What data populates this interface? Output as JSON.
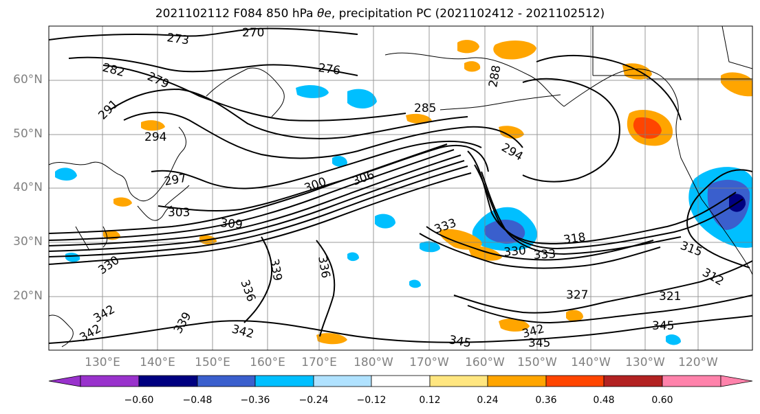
{
  "title_prefix": "2021102112 F084 850 hPa ",
  "title_symbol": "θe",
  "title_suffix": ", precipitation PC (2021102412 - 2021102512)",
  "lat_labels": [
    "60°N",
    "50°N",
    "40°N",
    "30°N",
    "20°N"
  ],
  "lon_labels": [
    "130°E",
    "140°E",
    "150°E",
    "160°E",
    "170°E",
    "180°W",
    "170°W",
    "160°W",
    "150°W",
    "140°W",
    "130°W",
    "120°W"
  ],
  "contour_labels": [
    "273",
    "270",
    "282",
    "279",
    "276",
    "291",
    "285",
    "294",
    "288",
    "297",
    "294",
    "300",
    "306",
    "303",
    "309",
    "333",
    "318",
    "330",
    "333",
    "339",
    "336",
    "336",
    "330",
    "315",
    "312",
    "342",
    "321",
    "327",
    "345",
    "342",
    "339",
    "342",
    "345",
    "342",
    "345"
  ],
  "colorbar": {
    "ticks": [
      "−0.60",
      "−0.48",
      "−0.36",
      "−0.24",
      "−0.12",
      "0.12",
      "0.24",
      "0.36",
      "0.48",
      "0.60"
    ],
    "colors": [
      "#9932cc",
      "#000080",
      "#3a5fcd",
      "#00bfff",
      "#b0e2ff",
      "#ffffff",
      "#ffe680",
      "#ffa500",
      "#ff4500",
      "#b22222",
      "#ff82ab"
    ]
  },
  "colors": {
    "contour": "#000000",
    "coast": "#000000",
    "grid": "#808080"
  }
}
